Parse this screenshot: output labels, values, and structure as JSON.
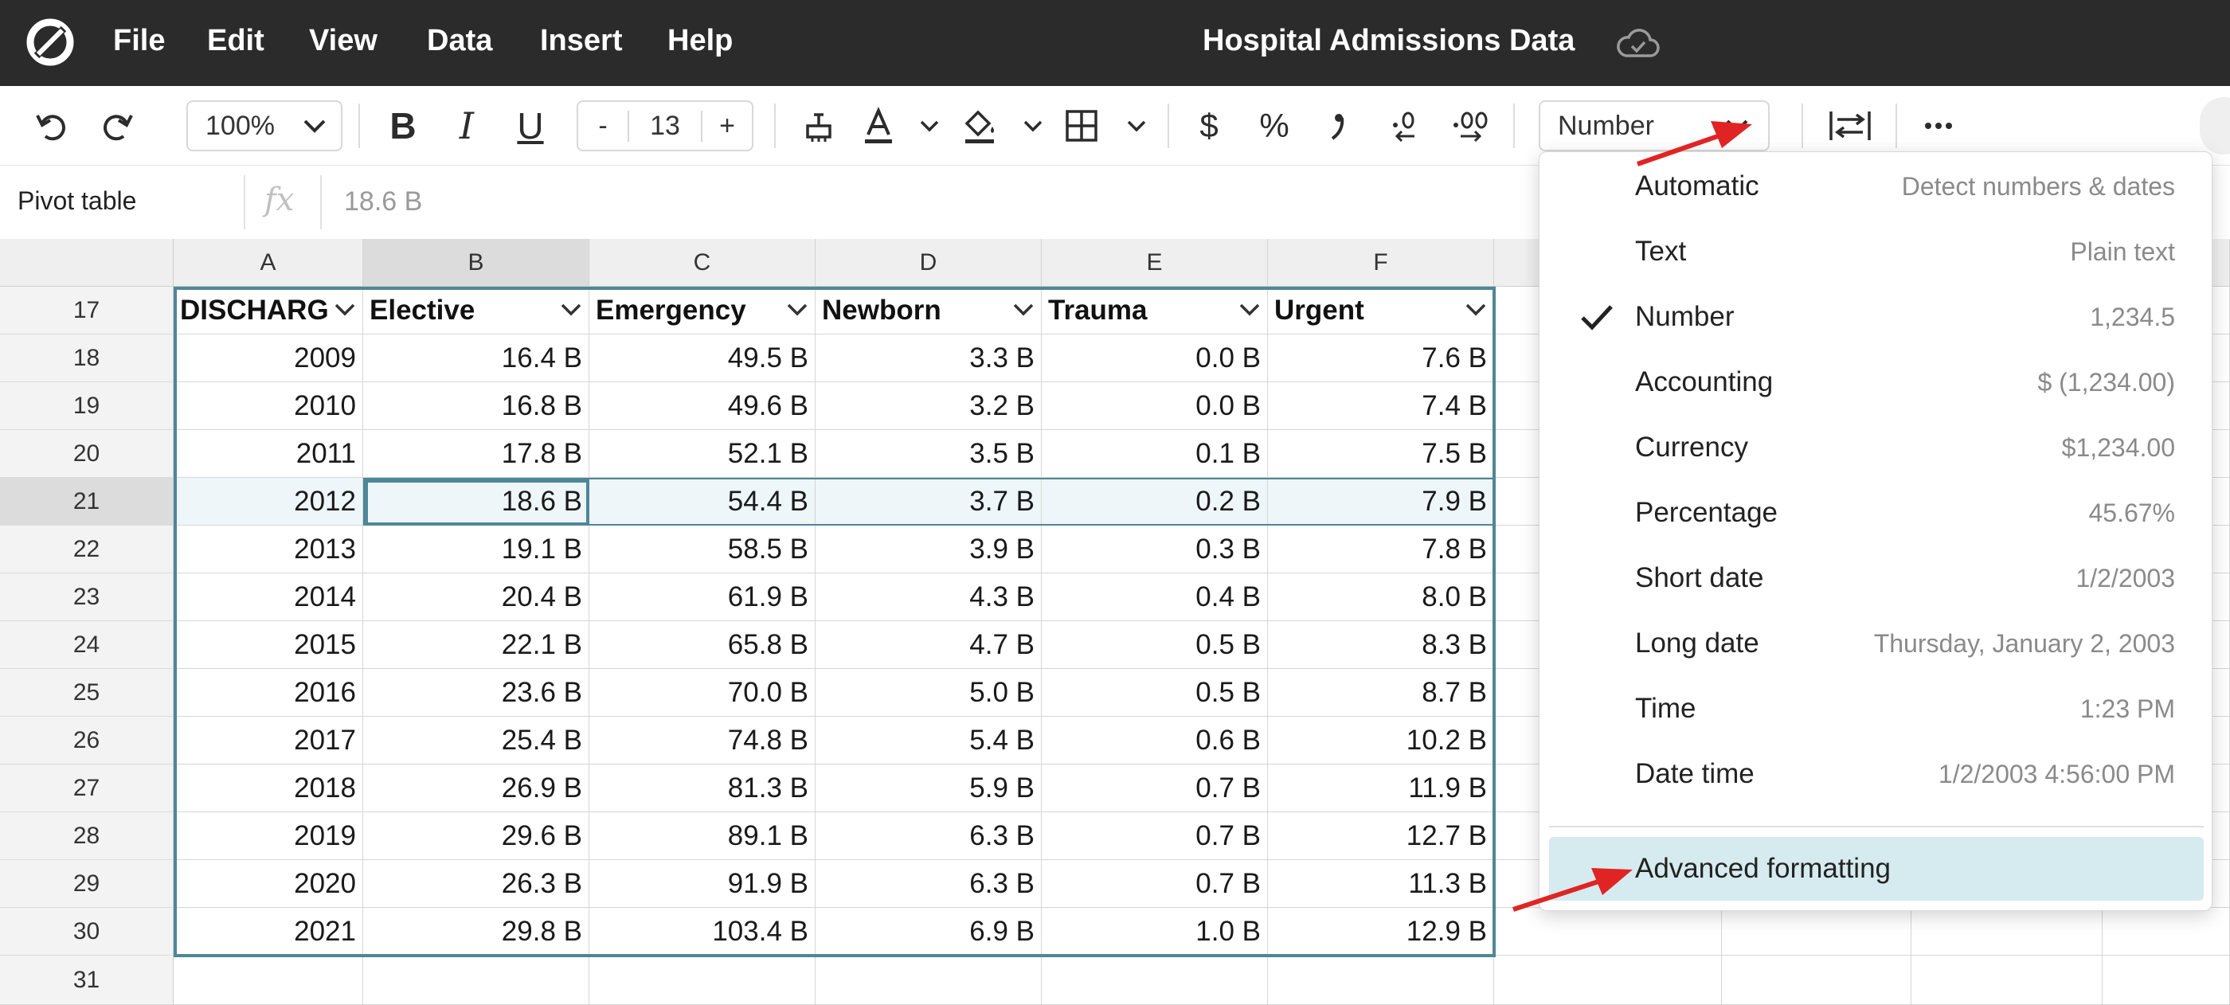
{
  "app": {
    "menu": [
      "File",
      "Edit",
      "View",
      "Data",
      "Insert",
      "Help"
    ],
    "title": "Hospital Admissions Data"
  },
  "toolbar": {
    "zoom": "100%",
    "font_size": "13",
    "minus": "-",
    "plus": "+",
    "number_format": "Number",
    "bold": "B",
    "italic": "I",
    "underline": "U",
    "currency": "$",
    "percent": "%"
  },
  "formula_bar": {
    "name_box": "Pivot table",
    "fx": "fx",
    "value": "18.6 B"
  },
  "grid": {
    "columns": [
      "A",
      "B",
      "C",
      "D",
      "E",
      "F"
    ],
    "row_numbers": [
      "17",
      "18",
      "19",
      "20",
      "21",
      "22",
      "23",
      "24",
      "25",
      "26",
      "27",
      "28",
      "29",
      "30",
      "31"
    ],
    "headers": [
      "DISCHARGE",
      "Elective",
      "Emergency",
      "Newborn",
      "Trauma",
      "Urgent"
    ],
    "rows": [
      [
        "2009",
        "16.4 B",
        "49.5 B",
        "3.3 B",
        "0.0 B",
        "7.6 B"
      ],
      [
        "2010",
        "16.8 B",
        "49.6 B",
        "3.2 B",
        "0.0 B",
        "7.4 B"
      ],
      [
        "2011",
        "17.8 B",
        "52.1 B",
        "3.5 B",
        "0.1 B",
        "7.5 B"
      ],
      [
        "2012",
        "18.6 B",
        "54.4 B",
        "3.7 B",
        "0.2 B",
        "7.9 B"
      ],
      [
        "2013",
        "19.1 B",
        "58.5 B",
        "3.9 B",
        "0.3 B",
        "7.8 B"
      ],
      [
        "2014",
        "20.4 B",
        "61.9 B",
        "4.3 B",
        "0.4 B",
        "8.0 B"
      ],
      [
        "2015",
        "22.1 B",
        "65.8 B",
        "4.7 B",
        "0.5 B",
        "8.3 B"
      ],
      [
        "2016",
        "23.6 B",
        "70.0 B",
        "5.0 B",
        "0.5 B",
        "8.7 B"
      ],
      [
        "2017",
        "25.4 B",
        "74.8 B",
        "5.4 B",
        "0.6 B",
        "10.2 B"
      ],
      [
        "2018",
        "26.9 B",
        "81.3 B",
        "5.9 B",
        "0.7 B",
        "11.9 B"
      ],
      [
        "2019",
        "29.6 B",
        "89.1 B",
        "6.3 B",
        "0.7 B",
        "12.7 B"
      ],
      [
        "2020",
        "26.3 B",
        "91.9 B",
        "6.3 B",
        "0.7 B",
        "11.3 B"
      ],
      [
        "2021",
        "29.8 B",
        "103.4 B",
        "6.9 B",
        "1.0 B",
        "12.9 B"
      ]
    ]
  },
  "format_menu": {
    "items": [
      {
        "label": "Automatic",
        "hint": "Detect numbers & dates",
        "checked": false
      },
      {
        "label": "Text",
        "hint": "Plain text",
        "checked": false
      },
      {
        "label": "Number",
        "hint": "1,234.5",
        "checked": true
      },
      {
        "label": "Accounting",
        "hint": "$ (1,234.00)",
        "checked": false
      },
      {
        "label": "Currency",
        "hint": "$1,234.00",
        "checked": false
      },
      {
        "label": "Percentage",
        "hint": "45.67%",
        "checked": false
      },
      {
        "label": "Short date",
        "hint": "1/2/2003",
        "checked": false
      },
      {
        "label": "Long date",
        "hint": "Thursday, January 2, 2003",
        "checked": false
      },
      {
        "label": "Time",
        "hint": "1:23 PM",
        "checked": false
      },
      {
        "label": "Date time",
        "hint": "1/2/2003 4:56:00 PM",
        "checked": false
      }
    ],
    "advanced": "Advanced formatting"
  },
  "colors": {
    "menubar": "#2b2b2b",
    "selection": "#4e8796",
    "highlight": "#d6ebef",
    "annotation_arrow": "#e02424"
  }
}
